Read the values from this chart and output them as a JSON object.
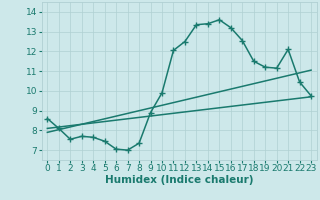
{
  "title": "",
  "xlabel": "Humidex (Indice chaleur)",
  "ylabel": "",
  "bg_color": "#cde8ea",
  "line_color": "#1a7a6e",
  "xlim": [
    -0.5,
    23.5
  ],
  "ylim": [
    6.5,
    14.5
  ],
  "xticks": [
    0,
    1,
    2,
    3,
    4,
    5,
    6,
    7,
    8,
    9,
    10,
    11,
    12,
    13,
    14,
    15,
    16,
    17,
    18,
    19,
    20,
    21,
    22,
    23
  ],
  "yticks": [
    7,
    8,
    9,
    10,
    11,
    12,
    13,
    14
  ],
  "main_x": [
    0,
    1,
    2,
    3,
    4,
    5,
    6,
    7,
    8,
    9,
    10,
    11,
    12,
    13,
    14,
    15,
    16,
    17,
    18,
    19,
    20,
    21,
    22,
    23
  ],
  "main_y": [
    8.6,
    8.1,
    7.55,
    7.7,
    7.65,
    7.45,
    7.05,
    7.0,
    7.35,
    8.9,
    9.9,
    12.05,
    12.5,
    13.35,
    13.4,
    13.6,
    13.2,
    12.55,
    11.5,
    11.2,
    11.15,
    12.1,
    10.45,
    9.75
  ],
  "trend1_x": [
    0,
    23
  ],
  "trend1_y": [
    8.1,
    9.7
  ],
  "trend2_x": [
    0,
    23
  ],
  "trend2_y": [
    7.9,
    11.05
  ],
  "grid_color": "#b0d0d3",
  "marker_size": 4.0,
  "line_width": 1.1,
  "tick_fontsize": 6.5,
  "xlabel_fontsize": 7.5
}
